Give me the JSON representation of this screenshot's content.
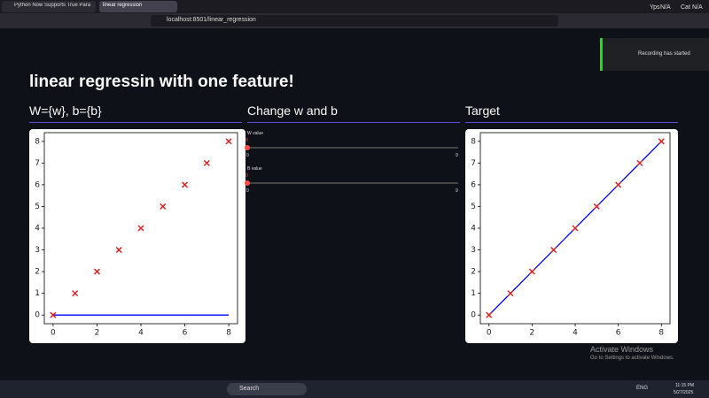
{
  "browser": {
    "tabs": [
      "Python Now Supports True Paralle",
      "linear regression"
    ],
    "url": "localhost:8501/linear_regression",
    "toolbar_labels": [
      "Yps",
      "N/A",
      "Cat",
      "N/A"
    ]
  },
  "notification": "Recording has started",
  "app": {
    "title": "linear regressin with one feature!",
    "columns": [
      "W={w}, b={b}",
      "Change w and b",
      "Target"
    ],
    "sliders": [
      {
        "label": "W value",
        "value": 0,
        "min": 0,
        "max": 9
      },
      {
        "label": "B value",
        "value": 0,
        "min": 0,
        "max": 9
      }
    ],
    "charts": [
      {
        "type": "scatter",
        "x": [
          0,
          1,
          2,
          3,
          4,
          5,
          6,
          7,
          8
        ],
        "series": [
          {
            "type": "scatter",
            "color": "#d62728",
            "values": [
              0,
              1,
              2,
              3,
              4,
              5,
              6,
              7,
              8
            ]
          },
          {
            "type": "line",
            "color": "#0000ff",
            "values": [
              0,
              0,
              0,
              0,
              0,
              0,
              0,
              0,
              0
            ]
          }
        ],
        "xlim": [
          -0.4,
          8.4
        ],
        "ylim": [
          -0.4,
          8.4
        ],
        "xticks": [
          0,
          2,
          4,
          6,
          8
        ],
        "yticks": [
          0,
          1,
          2,
          3,
          4,
          5,
          6,
          7,
          8
        ]
      },
      {
        "type": "scatter",
        "x": [
          0,
          1,
          2,
          3,
          4,
          5,
          6,
          7,
          8
        ],
        "series": [
          {
            "type": "scatter",
            "color": "#d62728",
            "values": [
              0,
              1,
              2,
              3,
              4,
              5,
              6,
              7,
              8
            ]
          },
          {
            "type": "line",
            "color": "#0000ff",
            "values": [
              0,
              1,
              2,
              3,
              4,
              5,
              6,
              7,
              8
            ]
          }
        ],
        "xlim": [
          -0.4,
          8.4
        ],
        "ylim": [
          -0.4,
          8.4
        ],
        "xticks": [
          0,
          2,
          4,
          6,
          8
        ],
        "yticks": [
          0,
          1,
          2,
          3,
          4,
          5,
          6,
          7,
          8
        ]
      }
    ]
  },
  "watermark": {
    "title": "Activate Windows",
    "subtitle": "Go to Settings to activate Windows."
  },
  "taskbar": {
    "search": "Search",
    "language": "ENG",
    "time": "11:15 PM",
    "date": "5/27/2025"
  }
}
